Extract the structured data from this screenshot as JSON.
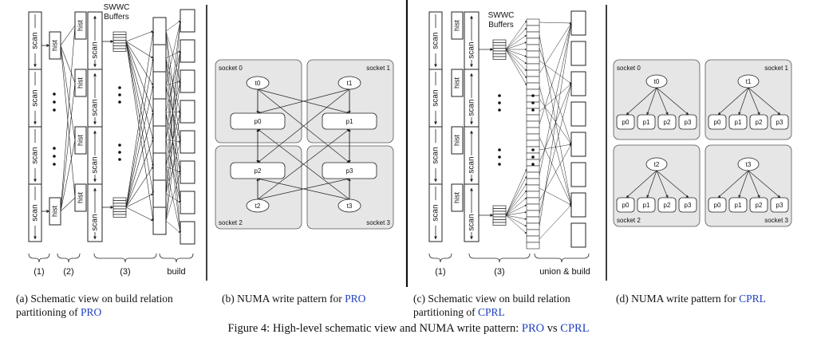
{
  "diagram": {
    "scan_label": "scan",
    "hist_label": "hist",
    "swwc_line1": "SWWC",
    "swwc_line2": "Buffers",
    "dots": "•",
    "panel_a_brackets": [
      "(1)",
      "(2)",
      "(3)",
      "build"
    ],
    "panel_c_brackets": [
      "(1)",
      "(3)",
      "union & build"
    ],
    "sockets": [
      "socket 0",
      "socket 1",
      "socket 2",
      "socket 3"
    ],
    "threads": [
      "t0",
      "t1",
      "t2",
      "t3"
    ],
    "partitions_b": [
      "p0",
      "p1",
      "p2",
      "p3"
    ],
    "partitions_d": [
      "p0",
      "p1",
      "p2",
      "p3"
    ]
  },
  "captions": {
    "a_prefix": "(a) Schematic view on build relation",
    "a_line2": "partitioning of ",
    "a_link": "PRO",
    "b_prefix": "(b) NUMA write pattern for ",
    "b_link": "PRO",
    "c_prefix": "(c) Schematic view on build relation",
    "c_line2": "partitioning of ",
    "c_link": "CPRL",
    "d_prefix": "(d) NUMA write pattern for ",
    "d_link": "CPRL",
    "figure_prefix": "Figure 4: High-level schematic view and NUMA write pattern: ",
    "figure_pro": "PRO",
    "figure_vs": " vs ",
    "figure_cprl": "CPRL"
  },
  "colors": {
    "link": "#1f3fbf",
    "socket_fill": "#e6e6e6",
    "line": "#222222"
  }
}
